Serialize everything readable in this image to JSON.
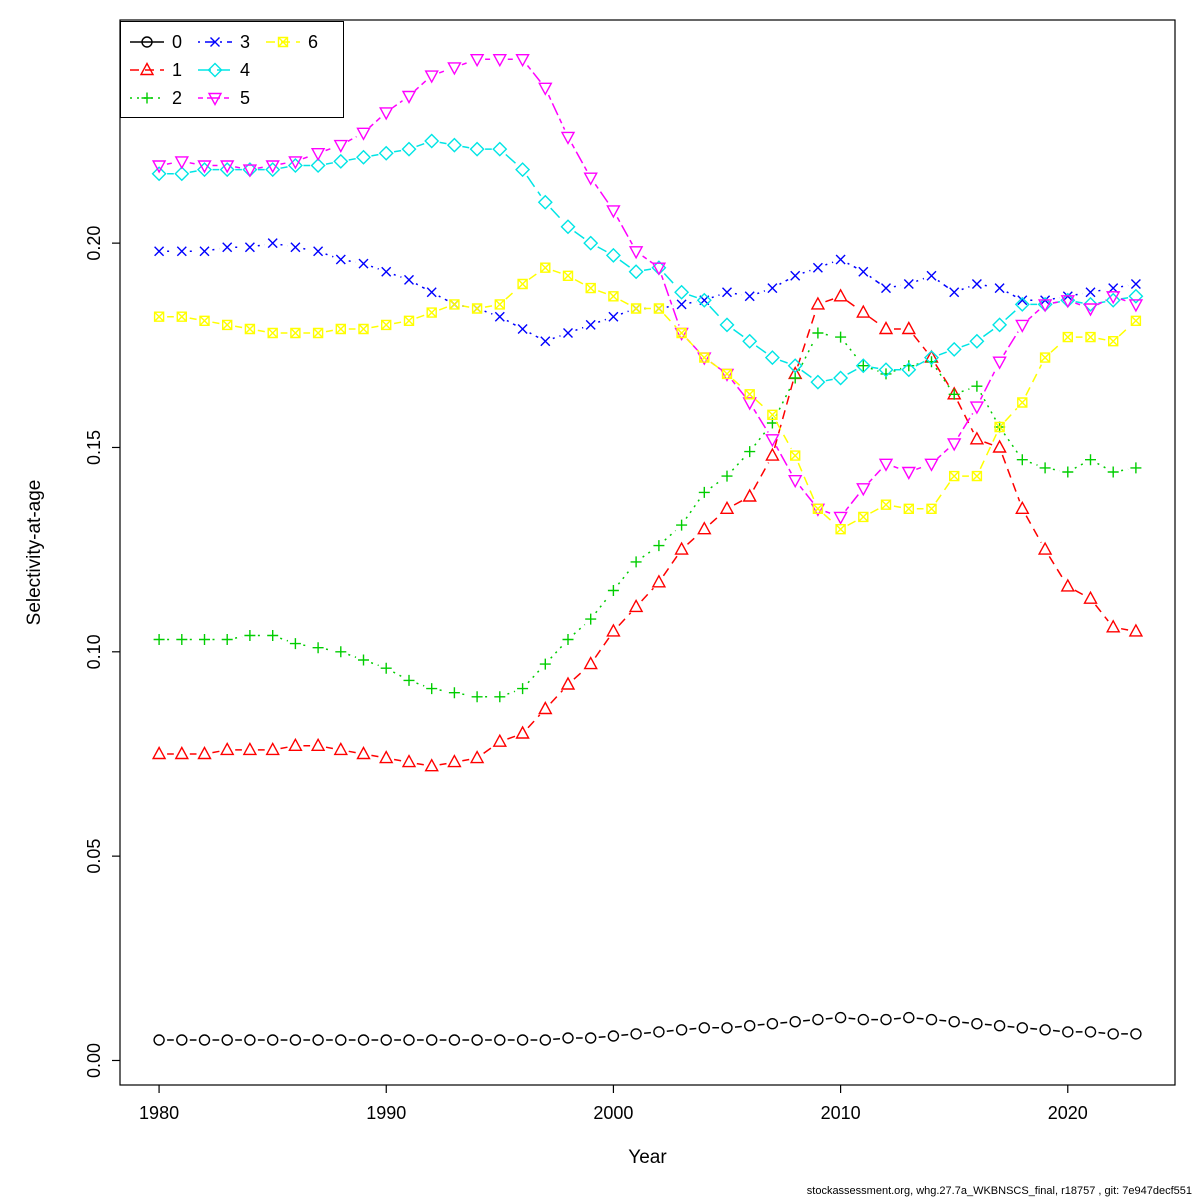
{
  "footer": "stockassessment.org, whg.27.7a_WKBNSCS_final, r18757 , git: 7e947decf551",
  "chart_data": {
    "type": "line",
    "title": "",
    "xlabel": "Year",
    "ylabel": "Selectivity-at-age",
    "xlim": [
      1978.28,
      2024.72
    ],
    "ylim": [
      -0.006,
      0.2546
    ],
    "xticks": [
      1980,
      1990,
      2000,
      2010,
      2020
    ],
    "yticks": [
      0,
      0.05,
      0.1,
      0.15,
      0.2
    ],
    "ytick_labels": [
      "0.00",
      "0.05",
      "0.10",
      "0.15",
      "0.20"
    ],
    "grid": false,
    "legend_position": "topleft",
    "x": [
      1980,
      1981,
      1982,
      1983,
      1984,
      1985,
      1986,
      1987,
      1988,
      1989,
      1990,
      1991,
      1992,
      1993,
      1994,
      1995,
      1996,
      1997,
      1998,
      1999,
      2000,
      2001,
      2002,
      2003,
      2004,
      2005,
      2006,
      2007,
      2008,
      2009,
      2010,
      2011,
      2012,
      2013,
      2014,
      2015,
      2016,
      2017,
      2018,
      2019,
      2020,
      2021,
      2022,
      2023
    ],
    "series": [
      {
        "name": "0",
        "color": "#000000",
        "marker": "circle",
        "dash": "solid",
        "values": [
          0.005,
          0.005,
          0.005,
          0.005,
          0.005,
          0.005,
          0.005,
          0.005,
          0.005,
          0.005,
          0.005,
          0.005,
          0.005,
          0.005,
          0.005,
          0.005,
          0.005,
          0.005,
          0.0055,
          0.0055,
          0.006,
          0.0065,
          0.007,
          0.0075,
          0.008,
          0.008,
          0.0085,
          0.009,
          0.0095,
          0.01,
          0.0105,
          0.01,
          0.01,
          0.0105,
          0.01,
          0.0095,
          0.009,
          0.0085,
          0.008,
          0.0075,
          0.007,
          0.007,
          0.0065,
          0.0065
        ]
      },
      {
        "name": "1",
        "color": "#ff0000",
        "marker": "triangle-up",
        "dash": "dashed",
        "values": [
          0.075,
          0.075,
          0.075,
          0.076,
          0.076,
          0.076,
          0.077,
          0.077,
          0.076,
          0.075,
          0.074,
          0.073,
          0.072,
          0.073,
          0.074,
          0.078,
          0.08,
          0.086,
          0.092,
          0.097,
          0.105,
          0.111,
          0.117,
          0.125,
          0.13,
          0.135,
          0.138,
          0.148,
          0.168,
          0.185,
          0.187,
          0.183,
          0.179,
          0.179,
          0.172,
          0.163,
          0.152,
          0.15,
          0.135,
          0.125,
          0.116,
          0.113,
          0.106,
          0.105
        ]
      },
      {
        "name": "2",
        "color": "#00cd00",
        "marker": "plus",
        "dash": "dotted",
        "values": [
          0.103,
          0.103,
          0.103,
          0.103,
          0.104,
          0.104,
          0.102,
          0.101,
          0.1,
          0.098,
          0.096,
          0.093,
          0.091,
          0.09,
          0.089,
          0.089,
          0.091,
          0.097,
          0.103,
          0.108,
          0.115,
          0.122,
          0.126,
          0.131,
          0.139,
          0.143,
          0.149,
          0.156,
          0.167,
          0.178,
          0.177,
          0.17,
          0.168,
          0.17,
          0.171,
          0.163,
          0.165,
          0.155,
          0.147,
          0.145,
          0.144,
          0.147,
          0.144,
          0.145
        ]
      },
      {
        "name": "3",
        "color": "#0000ff",
        "marker": "x",
        "dash": "dotdash",
        "values": [
          0.198,
          0.198,
          0.198,
          0.199,
          0.199,
          0.2,
          0.199,
          0.198,
          0.196,
          0.195,
          0.193,
          0.191,
          0.188,
          0.185,
          0.184,
          0.182,
          0.179,
          0.176,
          0.178,
          0.18,
          0.182,
          0.184,
          0.184,
          0.185,
          0.186,
          0.188,
          0.187,
          0.189,
          0.192,
          0.194,
          0.196,
          0.193,
          0.189,
          0.19,
          0.192,
          0.188,
          0.19,
          0.189,
          0.186,
          0.186,
          0.187,
          0.188,
          0.189,
          0.19
        ]
      },
      {
        "name": "4",
        "color": "#00e5e5",
        "marker": "diamond",
        "dash": "longdash",
        "values": [
          0.217,
          0.217,
          0.218,
          0.218,
          0.218,
          0.218,
          0.219,
          0.219,
          0.22,
          0.221,
          0.222,
          0.223,
          0.225,
          0.224,
          0.223,
          0.223,
          0.218,
          0.21,
          0.204,
          0.2,
          0.197,
          0.193,
          0.194,
          0.188,
          0.186,
          0.18,
          0.176,
          0.172,
          0.17,
          0.166,
          0.167,
          0.17,
          0.169,
          0.169,
          0.172,
          0.174,
          0.176,
          0.18,
          0.185,
          0.185,
          0.186,
          0.185,
          0.186,
          0.187
        ]
      },
      {
        "name": "5",
        "color": "#ff00ff",
        "marker": "triangle-down",
        "dash": "twodash",
        "values": [
          0.219,
          0.22,
          0.219,
          0.219,
          0.218,
          0.219,
          0.22,
          0.222,
          0.224,
          0.227,
          0.232,
          0.236,
          0.241,
          0.243,
          0.245,
          0.245,
          0.245,
          0.238,
          0.226,
          0.216,
          0.208,
          0.198,
          0.194,
          0.178,
          0.172,
          0.168,
          0.161,
          0.152,
          0.142,
          0.135,
          0.133,
          0.14,
          0.146,
          0.144,
          0.146,
          0.151,
          0.16,
          0.171,
          0.18,
          0.185,
          0.186,
          0.184,
          0.187,
          0.185
        ]
      },
      {
        "name": "6",
        "color": "#ffff00",
        "marker": "square-x",
        "dash": "dashed",
        "values": [
          0.182,
          0.182,
          0.181,
          0.18,
          0.179,
          0.178,
          0.178,
          0.178,
          0.179,
          0.179,
          0.18,
          0.181,
          0.183,
          0.185,
          0.184,
          0.185,
          0.19,
          0.194,
          0.192,
          0.189,
          0.187,
          0.184,
          0.184,
          0.178,
          0.172,
          0.168,
          0.163,
          0.158,
          0.148,
          0.135,
          0.13,
          0.133,
          0.136,
          0.135,
          0.135,
          0.143,
          0.143,
          0.155,
          0.161,
          0.172,
          0.177,
          0.177,
          0.176,
          0.181
        ]
      }
    ]
  }
}
